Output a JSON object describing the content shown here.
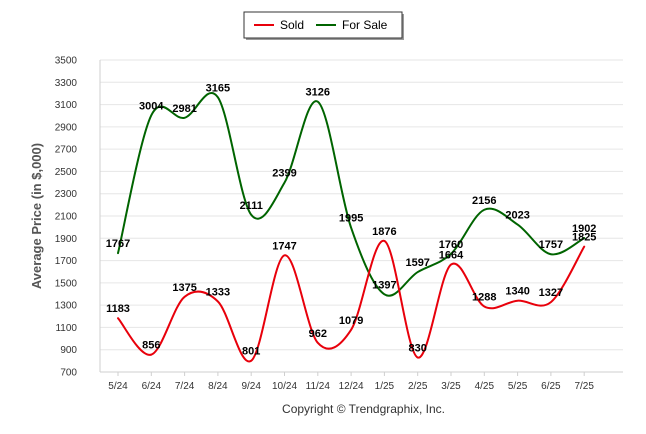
{
  "chart_data": {
    "type": "line",
    "categories": [
      "5/24",
      "6/24",
      "7/24",
      "8/24",
      "9/24",
      "10/24",
      "11/24",
      "12/24",
      "1/25",
      "2/25",
      "3/25",
      "4/25",
      "5/25",
      "6/25",
      "7/25"
    ],
    "series": [
      {
        "name": "Sold",
        "color": "#e8000b",
        "values": [
          1183,
          856,
          1375,
          1333,
          801,
          1747,
          962,
          1079,
          1876,
          830,
          1664,
          1288,
          1340,
          1327,
          1825
        ]
      },
      {
        "name": "For Sale",
        "color": "#006400",
        "values": [
          1767,
          3004,
          2981,
          3165,
          2111,
          2399,
          3126,
          1995,
          1397,
          1597,
          1760,
          2156,
          2023,
          1757,
          1902
        ]
      }
    ],
    "ylabel": "Average Price (in $,000)",
    "xlabel": "",
    "ylim": [
      700,
      3500
    ],
    "yticks": [
      700,
      900,
      1100,
      1300,
      1500,
      1700,
      1900,
      2100,
      2300,
      2500,
      2700,
      2900,
      3100,
      3300,
      3500
    ],
    "grid": true,
    "legend_position": "top-center",
    "footer": "Copyright © Trendgraphix, Inc."
  }
}
